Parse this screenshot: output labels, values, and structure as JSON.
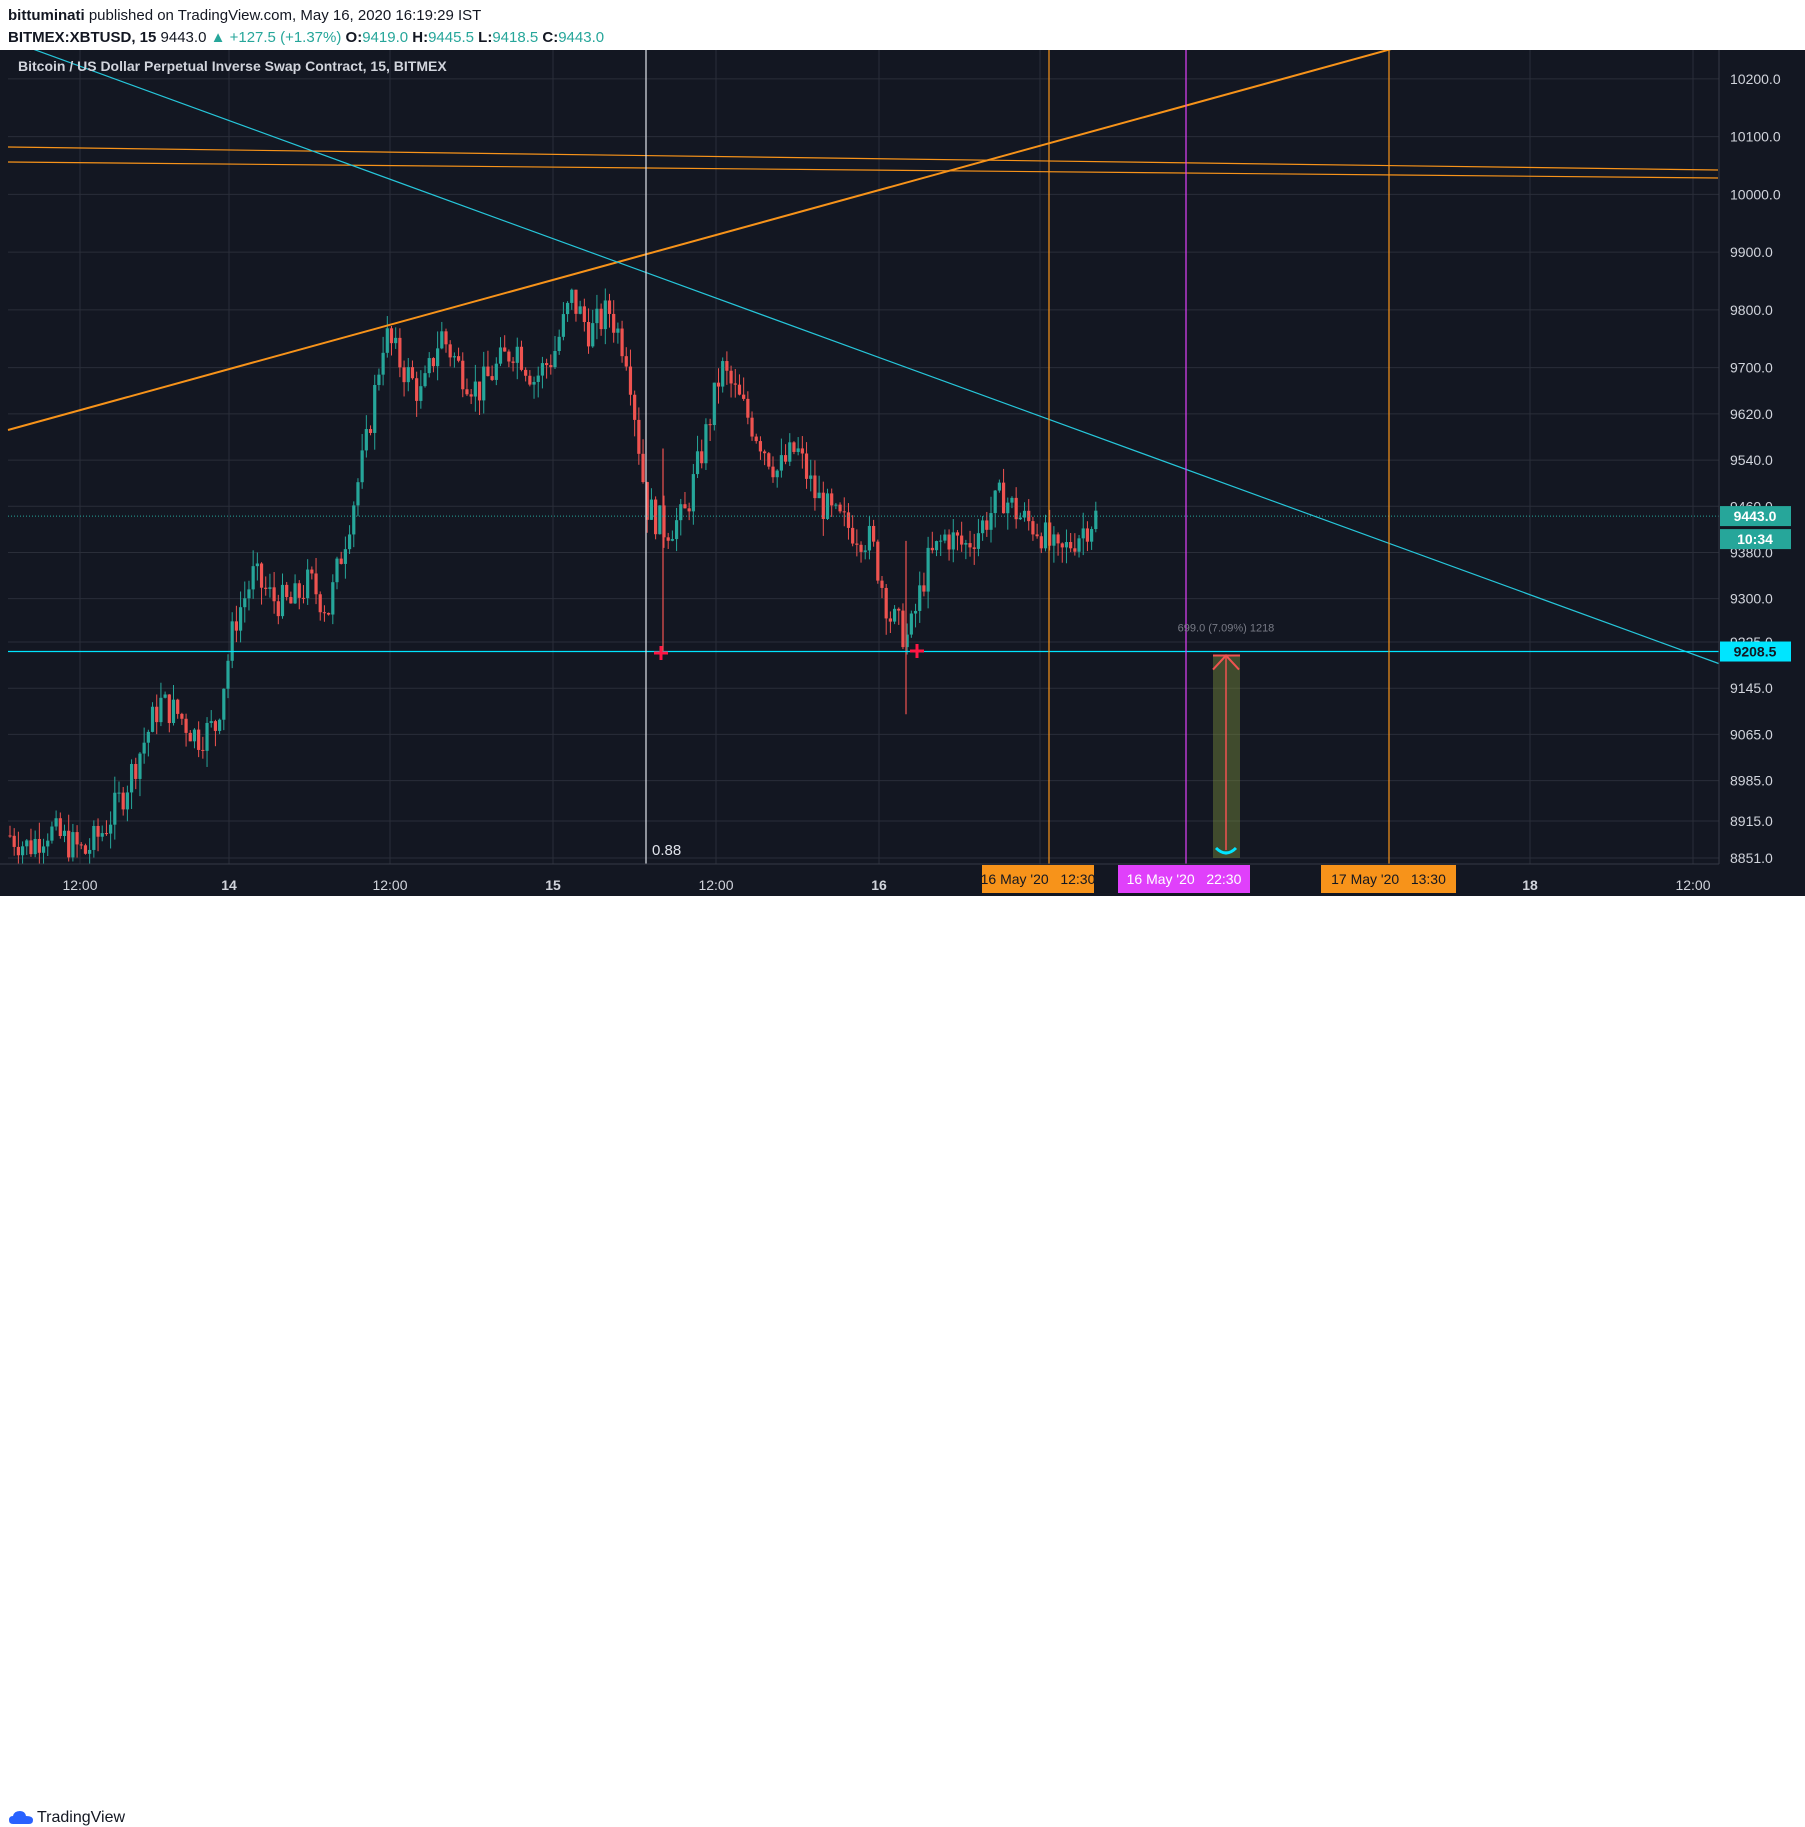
{
  "header": {
    "author": "bittuminati",
    "published_text": "published on TradingView.com, May 16, 2020 16:19:29 IST",
    "symbol": "BITMEX:XBTUSD, 15",
    "last": "9443.0",
    "change": "▲ +127.5 (+1.37%)",
    "o_label": "O:",
    "o": "9419.0",
    "h_label": "H:",
    "h": "9445.5",
    "l_label": "L:",
    "l": "9418.5",
    "c_label": "C:",
    "c": "9443.0"
  },
  "footer": {
    "brand": "TradingView"
  },
  "colors": {
    "background": "#131722",
    "grid": "#2a2e39",
    "up": "#26a69a",
    "down": "#ef5350",
    "orange": "#f7931a",
    "teal_line": "#26c6da",
    "magenta": "#e040fb",
    "support": "#00e5ff"
  },
  "chart_data": {
    "type": "candlestick",
    "title": "Bitcoin / US Dollar Perpetual Inverse Swap Contract, 15, BITMEX",
    "xlabel": "",
    "ylabel": "",
    "ylim": [
      8851.0,
      10250.0
    ],
    "x_tick_labels": [
      "12:00",
      "14",
      "12:00",
      "15",
      "12:00",
      "16",
      "12:00",
      "18",
      "12:00"
    ],
    "y_tick_labels": [
      "10200.0",
      "10100.0",
      "10000.0",
      "9900.0",
      "9800.0",
      "9700.0",
      "9620.0",
      "9540.0",
      "9460.0",
      "9380.0",
      "9300.0",
      "9225.0",
      "9145.0",
      "9065.0",
      "8985.0",
      "8915.0",
      "8851.0"
    ],
    "y_tick_values": [
      10200,
      10100,
      10000,
      9900,
      9800,
      9700,
      9620,
      9540,
      9460,
      9380,
      9300,
      9225,
      9145,
      9065,
      8985,
      8915,
      8851
    ],
    "current_price_label": "9443.0",
    "current_price": 9443.0,
    "countdown_label": "10:34",
    "support_label": "9208.5",
    "support_price": 9208.5,
    "projection_text": "699.0 (7.09%) 1218",
    "fib_label": "0.88",
    "date_markers": [
      "16 May '20   12:30",
      "16 May '20   22:30",
      "17 May '20   13:30"
    ],
    "price_path": [
      8890,
      8870,
      8900,
      8880,
      8860,
      8900,
      8960,
      9040,
      9120,
      9100,
      9060,
      9080,
      9260,
      9340,
      9300,
      9290,
      9330,
      9280,
      9420,
      9560,
      9760,
      9700,
      9650,
      9760,
      9700,
      9660,
      9700,
      9740,
      9680,
      9720,
      9820,
      9760,
      9800,
      9720,
      9460,
      9420,
      9440,
      9560,
      9700,
      9640,
      9580,
      9520,
      9560,
      9480,
      9440,
      9420,
      9400,
      9270,
      9230,
      9360,
      9410,
      9390,
      9430,
      9480,
      9440,
      9420,
      9370,
      9410,
      9443
    ],
    "price_wicks": [
      {
        "price": 9210,
        "low": 9208.5
      },
      {
        "price": 9100,
        "low": 9100
      }
    ]
  }
}
